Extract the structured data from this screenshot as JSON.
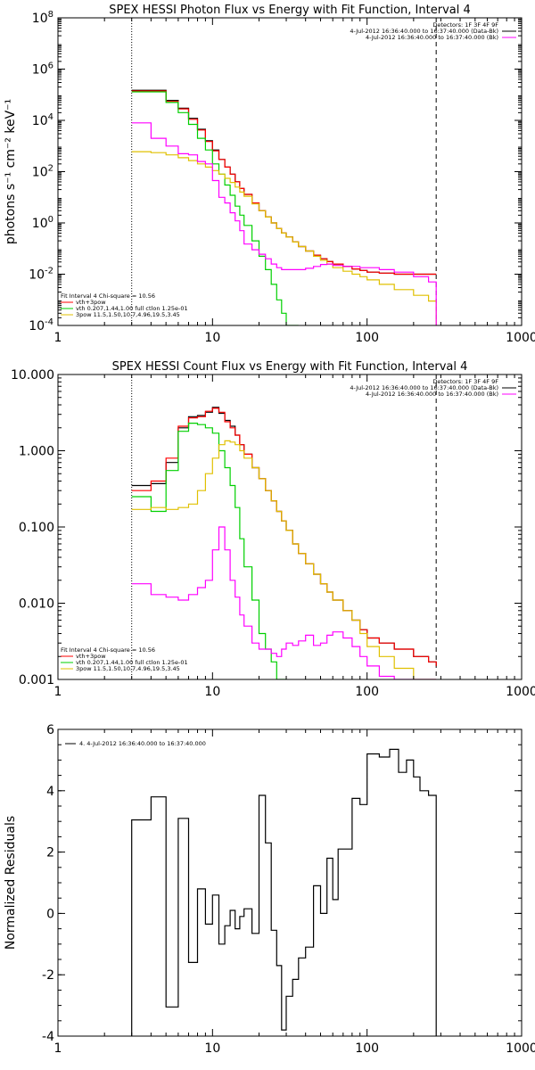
{
  "chart_data": [
    {
      "type": "line",
      "title": "SPEX HESSI Photon Flux vs Energy with Fit Function, Interval 4",
      "xlabel": "",
      "ylabel": "photons s⁻¹ cm⁻² keV⁻¹",
      "xscale": "log",
      "yscale": "log",
      "xlim": [
        1,
        1000
      ],
      "ylim": [
        0.0001,
        100000000
      ],
      "xticks": [
        "1",
        "10",
        "100",
        "1000"
      ],
      "yticks": [
        {
          "v": 0.0001,
          "m": "10",
          "e": "-4"
        },
        {
          "v": 0.01,
          "m": "10",
          "e": "-2"
        },
        {
          "v": 1,
          "m": "10",
          "e": "0"
        },
        {
          "v": 100,
          "m": "10",
          "e": "2"
        },
        {
          "v": 10000,
          "m": "10",
          "e": "4"
        },
        {
          "v": 1000000,
          "m": "10",
          "e": "6"
        },
        {
          "v": 100000000,
          "m": "10",
          "e": "8"
        }
      ],
      "vlines": [
        {
          "x": 3,
          "style": "dotted"
        },
        {
          "x": 280,
          "style": "dashed"
        }
      ],
      "legend_topright": [
        {
          "text": "Detectors: 1F 3F 4F 9F",
          "color": ""
        },
        {
          "text": "4-Jul-2012 16:36:40.000 to 16:37:40.000 (Data-Bk)",
          "color": "#000000"
        },
        {
          "text": "4-Jul-2012 16:36:40.000 to 16:37:40.000 (Bk)",
          "color": "#ff00ff"
        }
      ],
      "legend_bottomleft": [
        {
          "text": "Fit Interval 4   Chi-square = 10.56",
          "color": ""
        },
        {
          "text": "vth+3pow",
          "color": "#ff0000"
        },
        {
          "text": "vth 0.207,1.44,1.00  full ctlon 1.25e-01",
          "color": "#00d000"
        },
        {
          "text": "3pow 11.5,1.50,10.7,4.96,19.5,3.45",
          "color": "#e0c000"
        }
      ],
      "series": [
        {
          "color": "#000000",
          "x": [
            3,
            4,
            5,
            6,
            7,
            8,
            9,
            10,
            11,
            12,
            13,
            14,
            15,
            16,
            18,
            20,
            22,
            24,
            26,
            28,
            30,
            33,
            36,
            40,
            45,
            50,
            55,
            60,
            70,
            80,
            90,
            100,
            120,
            150,
            200,
            250,
            280
          ],
          "values": [
            150000,
            150000,
            60000,
            30000,
            12000,
            4500,
            1600,
            700,
            300,
            150,
            80,
            40,
            22,
            13,
            6,
            3,
            1.7,
            1,
            0.6,
            0.4,
            0.28,
            0.18,
            0.12,
            0.08,
            0.055,
            0.04,
            0.031,
            0.025,
            0.02,
            0.016,
            0.014,
            0.012,
            0.011,
            0.01,
            0.01,
            0.01,
            0.01
          ]
        },
        {
          "color": "#ff0000",
          "x": [
            3,
            4,
            5,
            6,
            7,
            8,
            9,
            10,
            11,
            12,
            13,
            14,
            15,
            16,
            18,
            20,
            22,
            24,
            26,
            28,
            30,
            33,
            36,
            40,
            45,
            50,
            55,
            60,
            70,
            80,
            90,
            100,
            120,
            150,
            200,
            250,
            280
          ],
          "values": [
            140000,
            140000,
            55000,
            28000,
            11000,
            4200,
            1500,
            650,
            300,
            150,
            80,
            40,
            22,
            13,
            6,
            3,
            1.7,
            1,
            0.6,
            0.4,
            0.28,
            0.18,
            0.12,
            0.08,
            0.055,
            0.04,
            0.031,
            0.025,
            0.02,
            0.016,
            0.014,
            0.012,
            0.011,
            0.01,
            0.01,
            0.01,
            0.01
          ]
        },
        {
          "color": "#00d000",
          "x": [
            3,
            4,
            5,
            6,
            7,
            8,
            9,
            10,
            11,
            12,
            13,
            14,
            15,
            16,
            18,
            20,
            22,
            24,
            26,
            28,
            30,
            33
          ],
          "values": [
            130000,
            130000,
            50000,
            20000,
            7000,
            2000,
            700,
            200,
            80,
            30,
            12,
            4.5,
            2,
            0.8,
            0.2,
            0.05,
            0.015,
            0.004,
            0.001,
            0.0003,
            0.0001,
            0.0001
          ]
        },
        {
          "color": "#e0c000",
          "x": [
            3,
            4,
            5,
            6,
            7,
            8,
            9,
            10,
            11,
            12,
            13,
            14,
            15,
            16,
            18,
            20,
            22,
            24,
            26,
            28,
            30,
            33,
            36,
            40,
            45,
            50,
            55,
            60,
            70,
            80,
            90,
            100,
            120,
            150,
            200,
            250,
            280
          ],
          "values": [
            600,
            550,
            450,
            350,
            270,
            200,
            150,
            110,
            80,
            55,
            38,
            25,
            16,
            11,
            5.5,
            3,
            1.7,
            1,
            0.6,
            0.4,
            0.28,
            0.18,
            0.12,
            0.08,
            0.05,
            0.035,
            0.025,
            0.018,
            0.013,
            0.01,
            0.008,
            0.006,
            0.004,
            0.0025,
            0.0015,
            0.0009,
            0.0001
          ]
        },
        {
          "color": "#ff00ff",
          "x": [
            3,
            4,
            5,
            6,
            7,
            8,
            9,
            10,
            11,
            12,
            13,
            14,
            15,
            16,
            18,
            20,
            22,
            24,
            26,
            28,
            30,
            33,
            36,
            40,
            45,
            50,
            55,
            60,
            70,
            80,
            90,
            100,
            120,
            150,
            200,
            250,
            280
          ],
          "values": [
            8000,
            2000,
            1000,
            500,
            450,
            250,
            200,
            45,
            10,
            6,
            2.5,
            1.2,
            0.5,
            0.15,
            0.09,
            0.06,
            0.04,
            0.025,
            0.018,
            0.015,
            0.015,
            0.015,
            0.015,
            0.017,
            0.02,
            0.024,
            0.025,
            0.022,
            0.02,
            0.02,
            0.018,
            0.018,
            0.015,
            0.012,
            0.008,
            0.005,
            0.0001
          ]
        }
      ]
    },
    {
      "type": "line",
      "title": "SPEX HESSI Count Flux vs Energy with Fit Function, Interval 4",
      "xlabel": "",
      "ylabel": "",
      "xscale": "log",
      "yscale": "log",
      "xlim": [
        1,
        1000
      ],
      "ylim": [
        0.001,
        10
      ],
      "xticks": [
        "1",
        "10",
        "100",
        "1000"
      ],
      "yticks": [
        {
          "v": 0.001,
          "label": "0.001"
        },
        {
          "v": 0.01,
          "label": "0.010"
        },
        {
          "v": 0.1,
          "label": "0.100"
        },
        {
          "v": 1,
          "label": "1.000"
        },
        {
          "v": 10,
          "label": "10.000"
        }
      ],
      "vlines": [
        {
          "x": 3,
          "style": "dotted"
        },
        {
          "x": 280,
          "style": "dashed"
        }
      ],
      "legend_topright": [
        {
          "text": "Detectors: 1F 3F 4F 9F",
          "color": ""
        },
        {
          "text": "4-Jul-2012 16:36:40.000 to 16:37:40.000 (Data-Bk)",
          "color": "#000000"
        },
        {
          "text": "4-Jul-2012 16:36:40.000 to 16:37:40.000 (Bk)",
          "color": "#ff00ff"
        }
      ],
      "legend_bottomleft": [
        {
          "text": "Fit Interval 4   Chi-square = 10.56",
          "color": ""
        },
        {
          "text": "vth+3pow",
          "color": "#ff0000"
        },
        {
          "text": "vth 0.207,1.44,1.00  full ctlon 1.25e-01",
          "color": "#00d000"
        },
        {
          "text": "3pow 11.5,1.50,10.7,4.96,19.5,3.45",
          "color": "#e0c000"
        }
      ],
      "series": [
        {
          "color": "#000000",
          "x": [
            3,
            4,
            5,
            6,
            7,
            8,
            9,
            10,
            11,
            12,
            13,
            14,
            15,
            16,
            18,
            20,
            22,
            24,
            26,
            28,
            30,
            33,
            36,
            40,
            45,
            50,
            55,
            60,
            70,
            80,
            90,
            100,
            120,
            150,
            200,
            250,
            280
          ],
          "values": [
            0.35,
            0.37,
            0.7,
            2.0,
            2.8,
            2.9,
            3.2,
            3.7,
            3.1,
            2.5,
            2.1,
            1.6,
            1.2,
            0.9,
            0.6,
            0.43,
            0.3,
            0.22,
            0.16,
            0.12,
            0.09,
            0.06,
            0.045,
            0.033,
            0.024,
            0.018,
            0.014,
            0.011,
            0.008,
            0.006,
            0.0045,
            0.0035,
            0.003,
            0.0025,
            0.002,
            0.0017,
            0.0015
          ]
        },
        {
          "color": "#ff0000",
          "x": [
            3,
            4,
            5,
            6,
            7,
            8,
            9,
            10,
            11,
            12,
            13,
            14,
            15,
            16,
            18,
            20,
            22,
            24,
            26,
            28,
            30,
            33,
            36,
            40,
            45,
            50,
            55,
            60,
            70,
            80,
            90,
            100,
            120,
            150,
            200,
            250,
            280
          ],
          "values": [
            0.3,
            0.4,
            0.8,
            2.1,
            2.7,
            2.8,
            3.3,
            3.6,
            3.2,
            2.4,
            2.0,
            1.6,
            1.2,
            0.9,
            0.6,
            0.43,
            0.3,
            0.22,
            0.16,
            0.12,
            0.09,
            0.06,
            0.045,
            0.033,
            0.024,
            0.018,
            0.014,
            0.011,
            0.008,
            0.006,
            0.0045,
            0.0035,
            0.003,
            0.0025,
            0.002,
            0.0017,
            0.0015
          ]
        },
        {
          "color": "#00d000",
          "x": [
            3,
            4,
            5,
            6,
            7,
            8,
            9,
            10,
            11,
            12,
            13,
            14,
            15,
            16,
            18,
            20,
            22,
            24,
            26,
            28
          ],
          "values": [
            0.25,
            0.16,
            0.55,
            1.8,
            2.3,
            2.2,
            2.0,
            1.7,
            1.0,
            0.6,
            0.35,
            0.18,
            0.07,
            0.03,
            0.011,
            0.004,
            0.0025,
            0.0017,
            0.001,
            0.001
          ]
        },
        {
          "color": "#e0c000",
          "x": [
            3,
            4,
            5,
            6,
            7,
            8,
            9,
            10,
            11,
            12,
            13,
            14,
            15,
            16,
            18,
            20,
            22,
            24,
            26,
            28,
            30,
            33,
            36,
            40,
            45,
            50,
            55,
            60,
            70,
            80,
            90,
            100,
            120,
            150,
            200,
            250,
            280
          ],
          "values": [
            0.17,
            0.18,
            0.17,
            0.18,
            0.2,
            0.3,
            0.5,
            0.8,
            1.2,
            1.35,
            1.3,
            1.2,
            1.0,
            0.8,
            0.6,
            0.43,
            0.3,
            0.22,
            0.16,
            0.12,
            0.09,
            0.06,
            0.045,
            0.033,
            0.024,
            0.018,
            0.014,
            0.011,
            0.008,
            0.006,
            0.004,
            0.0027,
            0.002,
            0.0014,
            0.001,
            0.001,
            0.001
          ]
        },
        {
          "color": "#ff00ff",
          "x": [
            3,
            4,
            5,
            6,
            7,
            8,
            9,
            10,
            11,
            12,
            13,
            14,
            15,
            16,
            18,
            20,
            22,
            24,
            26,
            28,
            30,
            33,
            36,
            40,
            45,
            50,
            55,
            60,
            70,
            80,
            90,
            100,
            120,
            150,
            200,
            250,
            280
          ],
          "values": [
            0.018,
            0.013,
            0.012,
            0.011,
            0.013,
            0.016,
            0.02,
            0.05,
            0.1,
            0.05,
            0.02,
            0.012,
            0.007,
            0.005,
            0.003,
            0.0025,
            0.0025,
            0.0022,
            0.002,
            0.0025,
            0.003,
            0.0028,
            0.0032,
            0.0038,
            0.0028,
            0.003,
            0.0038,
            0.0042,
            0.0035,
            0.0027,
            0.002,
            0.0015,
            0.0011,
            0.001,
            0.001,
            0.001,
            0.001
          ]
        }
      ]
    },
    {
      "type": "line",
      "title": "",
      "xlabel": "",
      "ylabel": "Normalized Residuals",
      "xscale": "log",
      "yscale": "linear",
      "xlim": [
        1,
        1000
      ],
      "ylim": [
        -4,
        6
      ],
      "xticks": [
        "1",
        "10",
        "100",
        "1000"
      ],
      "yticks": [
        {
          "v": -4,
          "label": "-4"
        },
        {
          "v": -2,
          "label": "-2"
        },
        {
          "v": 0,
          "label": "0"
        },
        {
          "v": 2,
          "label": "2"
        },
        {
          "v": 4,
          "label": "4"
        },
        {
          "v": 6,
          "label": "6"
        }
      ],
      "legend_topleft": "4.  4-Jul-2012 16:36:40.000 to 16:37:40.000",
      "series": [
        {
          "color": "#000000",
          "x": [
            3,
            4,
            5,
            6,
            7,
            8,
            9,
            10,
            11,
            12,
            13,
            14,
            15,
            16,
            18,
            20,
            22,
            24,
            26,
            28,
            30,
            33,
            36,
            40,
            45,
            50,
            55,
            60,
            65,
            70,
            80,
            90,
            100,
            120,
            140,
            160,
            180,
            200,
            220,
            250,
            280
          ],
          "values": [
            3.05,
            3.8,
            -3.05,
            3.1,
            -1.6,
            0.8,
            -0.35,
            0.6,
            -1.0,
            -0.4,
            0.1,
            -0.5,
            -0.1,
            0.15,
            -0.65,
            3.85,
            2.3,
            -0.55,
            -1.7,
            -3.8,
            -2.7,
            -2.15,
            -1.45,
            -1.1,
            0.9,
            0.0,
            1.8,
            0.45,
            2.1,
            2.1,
            3.75,
            3.55,
            5.2,
            5.1,
            5.35,
            4.6,
            5.0,
            4.45,
            4.0,
            3.85,
            3.85
          ]
        }
      ]
    }
  ]
}
